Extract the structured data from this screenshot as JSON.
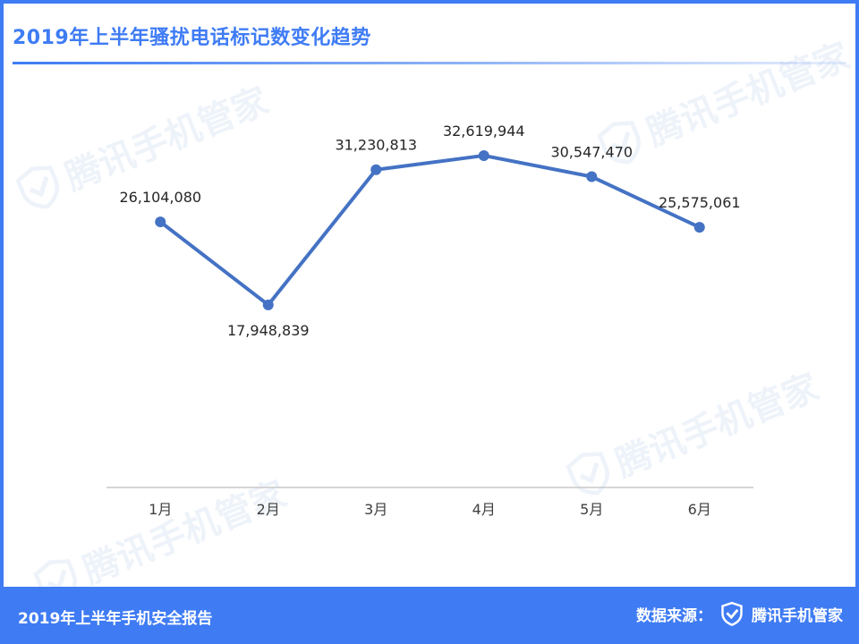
{
  "header": {
    "title": "2019年上半年骚扰电话标记数变化趋势"
  },
  "watermark": {
    "text": "腾讯手机管家",
    "icon": "tencent-shield-icon"
  },
  "chart_data": {
    "type": "line",
    "title": "2019年上半年骚扰电话标记数变化趋势",
    "categories": [
      "1月",
      "2月",
      "3月",
      "4月",
      "5月",
      "6月"
    ],
    "series": [
      {
        "values": [
          26104080,
          17948839,
          31230813,
          32619944,
          30547470,
          25575061
        ],
        "labels": [
          "26,104,080",
          "17,948,839",
          "31,230,813",
          "32,619,944",
          "30,547,470",
          "25,575,061"
        ]
      }
    ],
    "ylim": [
      0,
      40000000
    ],
    "grid": false,
    "color": "#4472c4",
    "xlabel": "",
    "ylabel": ""
  },
  "footer": {
    "left": "2019年上半年手机安全报告",
    "source_label": "数据来源：",
    "brand": "腾讯手机管家",
    "brand_icon": "tencent-shield-icon"
  },
  "colors": {
    "accent": "#3f7cf4",
    "line": "#4472c4"
  }
}
